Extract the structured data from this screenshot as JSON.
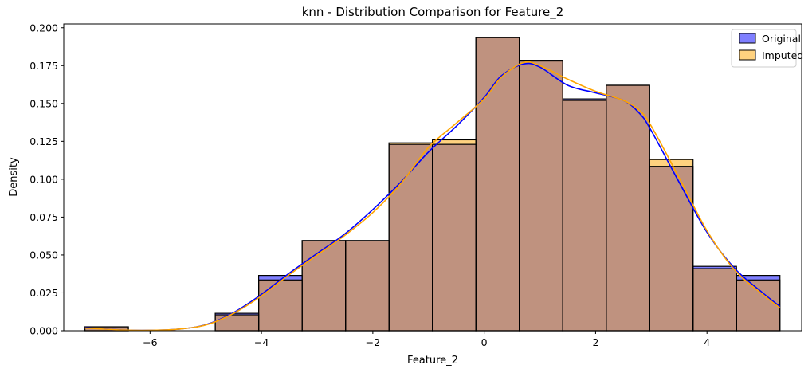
{
  "chart_data": {
    "type": "bar",
    "title": "knn - Distribution Comparison for Feature_2",
    "xlabel": "Feature_2",
    "ylabel": "Density",
    "xlim": [
      -7.55,
      5.7
    ],
    "ylim": [
      0,
      0.2025
    ],
    "xticks": [
      -6,
      -4,
      -2,
      0,
      2,
      4
    ],
    "xtick_labels": [
      "−6",
      "−4",
      "−2",
      "0",
      "2",
      "4"
    ],
    "yticks": [
      0,
      0.025,
      0.05,
      0.075,
      0.1,
      0.125,
      0.15,
      0.175,
      0.2
    ],
    "ytick_labels": [
      "0.000",
      "0.025",
      "0.050",
      "0.075",
      "0.100",
      "0.125",
      "0.150",
      "0.175",
      "0.200"
    ],
    "grid": false,
    "legend_position": "top-right",
    "bin_edges": [
      -7.17,
      -6.39,
      -5.61,
      -4.83,
      -4.05,
      -3.27,
      -2.49,
      -1.71,
      -0.93,
      -0.15,
      0.63,
      1.41,
      2.19,
      2.97,
      3.75,
      4.53,
      5.31
    ],
    "series": [
      {
        "name": "Original",
        "color": "#0000ff",
        "values": [
          0.0026,
          0,
          0,
          0.0115,
          0.0365,
          0.0595,
          0.0595,
          0.123,
          0.123,
          0.1935,
          0.1785,
          0.153,
          0.162,
          0.1085,
          0.0425,
          0.0365
        ],
        "kde_x": [
          -7.17,
          -6.5,
          -6.0,
          -5.5,
          -5.0,
          -4.5,
          -4.0,
          -3.5,
          -3.0,
          -2.5,
          -2.0,
          -1.5,
          -1.0,
          -0.5,
          0.0,
          0.3,
          0.7,
          1.0,
          1.5,
          2.0,
          2.5,
          2.8,
          3.0,
          3.5,
          4.0,
          4.5,
          5.0,
          5.31
        ],
        "kde_y": [
          0.002,
          0.0005,
          0.0003,
          0.001,
          0.004,
          0.012,
          0.024,
          0.038,
          0.051,
          0.064,
          0.08,
          0.098,
          0.118,
          0.135,
          0.154,
          0.168,
          0.176,
          0.174,
          0.162,
          0.157,
          0.152,
          0.143,
          0.132,
          0.098,
          0.065,
          0.041,
          0.025,
          0.016
        ]
      },
      {
        "name": "Imputed",
        "color": "#ffa500",
        "values": [
          0.0026,
          0,
          0,
          0.0105,
          0.0335,
          0.0595,
          0.0595,
          0.124,
          0.126,
          0.1935,
          0.178,
          0.152,
          0.162,
          0.113,
          0.041,
          0.0335
        ],
        "kde_x": [
          -7.17,
          -6.5,
          -6.0,
          -5.5,
          -5.0,
          -4.5,
          -4.0,
          -3.5,
          -3.0,
          -2.5,
          -2.0,
          -1.5,
          -1.0,
          -0.5,
          0.0,
          0.3,
          0.7,
          1.0,
          1.5,
          2.0,
          2.5,
          2.8,
          3.0,
          3.5,
          4.0,
          4.5,
          5.0,
          5.31
        ],
        "kde_y": [
          0.0018,
          0.0005,
          0.0003,
          0.001,
          0.0038,
          0.0115,
          0.023,
          0.037,
          0.05,
          0.063,
          0.078,
          0.097,
          0.121,
          0.137,
          0.153,
          0.167,
          0.177,
          0.175,
          0.166,
          0.158,
          0.152,
          0.145,
          0.135,
          0.101,
          0.066,
          0.04,
          0.024,
          0.015
        ]
      }
    ]
  }
}
